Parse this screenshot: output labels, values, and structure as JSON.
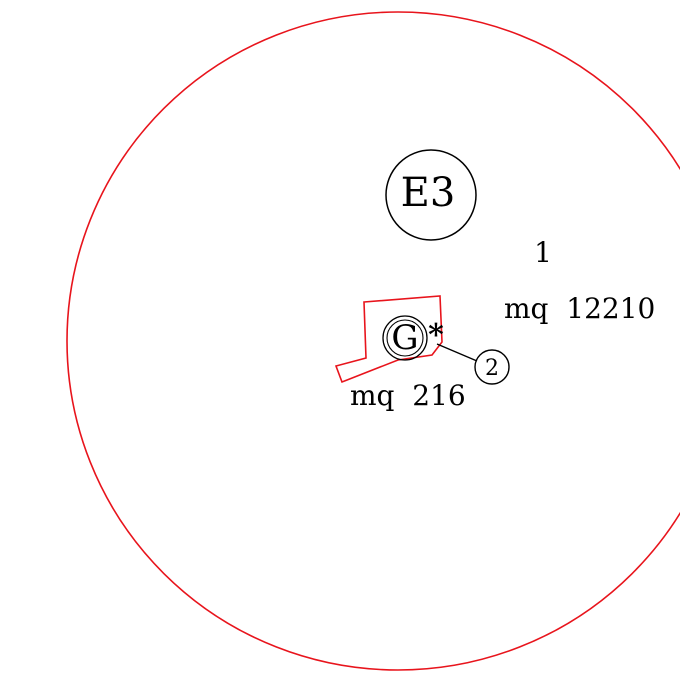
{
  "plan": {
    "zone_label": "E3",
    "parcel_number": "1",
    "parcel_area": "mq  12210",
    "building_label": "G",
    "building_marker": "*",
    "callout_number": "2",
    "building_area": "mq  216"
  },
  "colors": {
    "boundary": "#e8141c",
    "ink": "#000000",
    "background": "#ffffff"
  }
}
